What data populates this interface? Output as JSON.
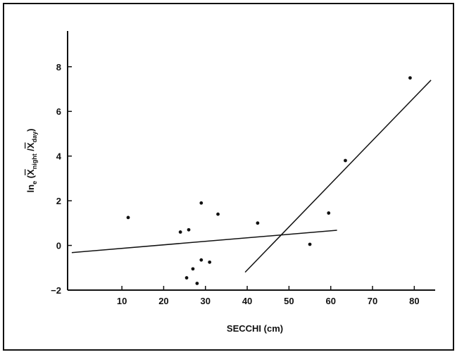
{
  "chart_data": {
    "type": "scatter",
    "xlabel": "SECCHI (cm)",
    "ylabel_parts": {
      "prefix": "ln",
      "prefix_sub": "e",
      "open": " (",
      "num": "X",
      "num_sub": "night",
      "slash": " /",
      "den": "X",
      "den_sub": "day",
      "close": ")"
    },
    "xlim": [
      -3,
      85
    ],
    "ylim": [
      -2,
      9.6
    ],
    "xticks": [
      10,
      20,
      30,
      40,
      50,
      60,
      70,
      80
    ],
    "xtick_labels": [
      "10",
      "20",
      "30",
      "40",
      "50",
      "60",
      "70",
      "80"
    ],
    "yticks": [
      -2,
      0,
      2,
      4,
      6,
      8
    ],
    "ytick_labels": [
      "−2",
      "0",
      "2",
      "4",
      "6",
      "8"
    ],
    "points": [
      {
        "x": 11.5,
        "y": 1.25
      },
      {
        "x": 24,
        "y": 0.6
      },
      {
        "x": 26,
        "y": 0.7
      },
      {
        "x": 25.5,
        "y": -1.45
      },
      {
        "x": 27,
        "y": -1.05
      },
      {
        "x": 28,
        "y": -1.7
      },
      {
        "x": 29,
        "y": 1.9
      },
      {
        "x": 29,
        "y": -0.65
      },
      {
        "x": 31,
        "y": -0.75
      },
      {
        "x": 33,
        "y": 1.4
      },
      {
        "x": 42.5,
        "y": 1.0
      },
      {
        "x": 55,
        "y": 0.05
      },
      {
        "x": 59.5,
        "y": 1.45
      },
      {
        "x": 63.5,
        "y": 3.8
      },
      {
        "x": 79,
        "y": 7.5
      }
    ],
    "lines": [
      {
        "x": [
          -2,
          61.5
        ],
        "y": [
          -0.32,
          0.68
        ]
      },
      {
        "x": 39.5,
        "x2": 84,
        "y": -1.2,
        "y2": 7.4
      }
    ],
    "grid": false
  }
}
